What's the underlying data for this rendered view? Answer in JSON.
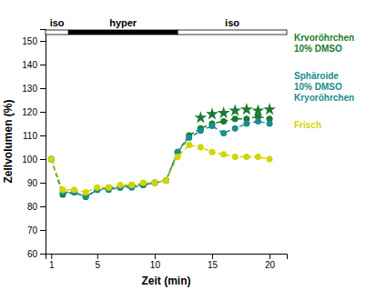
{
  "chart_data": {
    "type": "line",
    "xlabel": "Zeit (min)",
    "ylabel": "Zellvolumen (%)",
    "x": [
      1,
      2,
      3,
      4,
      5,
      6,
      7,
      8,
      9,
      10,
      11,
      12,
      13,
      14,
      15,
      16,
      17,
      18,
      19,
      20
    ],
    "series": [
      {
        "name": "Krvoröhrchen\n10% DMSO",
        "color": "#1a7a2e",
        "marker": "circle",
        "line_style": "dashed",
        "values": [
          100,
          85,
          86,
          84,
          87,
          88,
          88,
          89,
          89,
          90,
          91,
          103,
          110,
          113,
          115,
          116,
          117,
          117,
          118,
          117
        ]
      },
      {
        "name": "Sphäroide\n10% DMSO\nKryoröhrchen",
        "color": "#1a8c8c",
        "marker": "circle",
        "line_style": "dashed",
        "values": [
          100,
          86,
          86,
          84,
          87,
          87,
          88,
          88,
          89,
          90,
          91,
          103,
          109,
          112,
          114,
          111,
          113,
          115,
          116,
          115
        ]
      },
      {
        "name": "Frisch",
        "color": "#d4d400",
        "marker": "circle",
        "line_style": "dashed",
        "values": [
          100,
          87,
          87,
          86,
          88,
          88,
          89,
          89,
          90,
          90,
          91,
          101,
          106,
          105,
          103,
          102,
          101,
          101,
          101,
          100
        ]
      },
      {
        "type": "scatter",
        "color": "#1a7a2e",
        "marker": "star",
        "values": [
          null,
          null,
          null,
          null,
          null,
          null,
          null,
          null,
          null,
          null,
          null,
          null,
          null,
          117.5,
          119,
          119.5,
          120.5,
          121,
          120.5,
          121
        ]
      }
    ],
    "phases": [
      {
        "label": "iso",
        "start": 0.5,
        "end": 2.5,
        "color": "white"
      },
      {
        "label": "hyper",
        "start": 2.5,
        "end": 12.0,
        "color": "black"
      },
      {
        "label": "iso",
        "start": 12.0,
        "end": 21.5,
        "color": "white"
      }
    ],
    "xlim": [
      0.5,
      21.5
    ],
    "ylim": [
      60,
      155
    ],
    "xticks": [
      1,
      5,
      10,
      15,
      20
    ],
    "yticks": [
      60,
      70,
      80,
      90,
      100,
      110,
      120,
      130,
      140,
      150
    ],
    "legend": "right"
  }
}
